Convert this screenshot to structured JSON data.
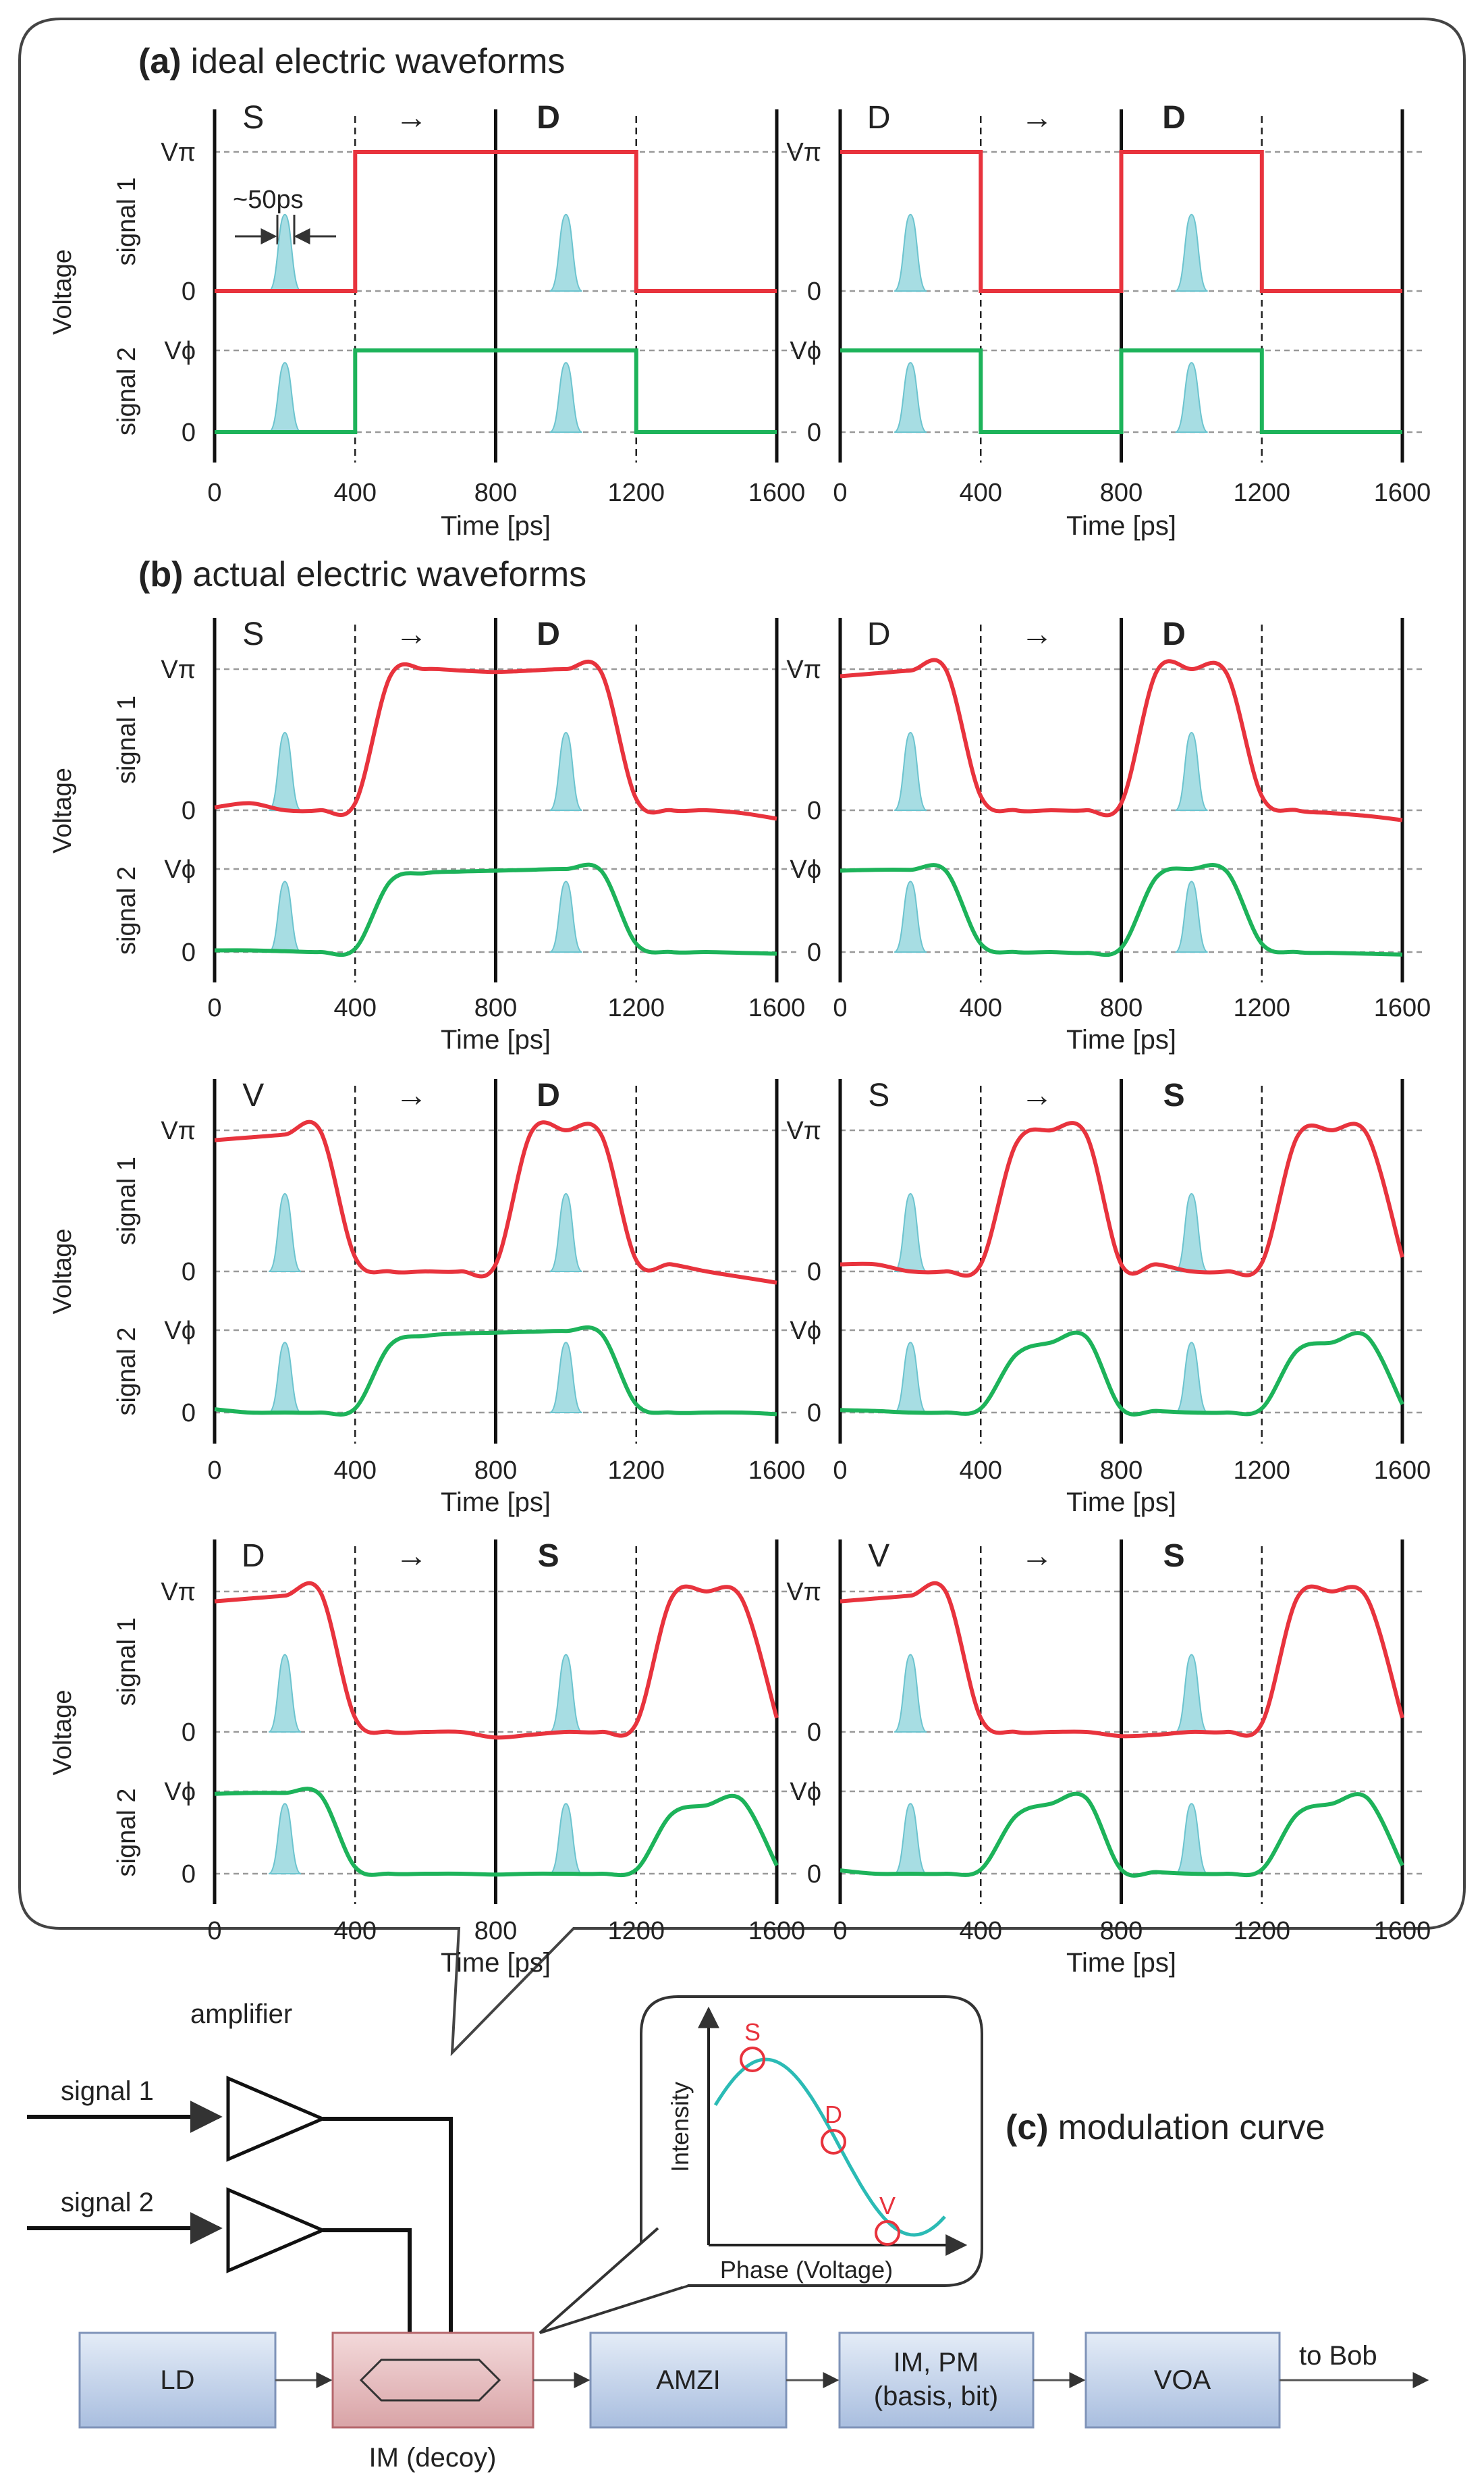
{
  "panel_a": {
    "label": "(a)",
    "title": "ideal electric waveforms",
    "pulse_width_label": "~50ps"
  },
  "panel_b": {
    "label": "(b)",
    "title": "actual electric waveforms"
  },
  "panel_c": {
    "label": "(c)",
    "title": "modulation curve",
    "x_axis": "Phase (Voltage)",
    "y_axis": "Intensity",
    "points": [
      "S",
      "D",
      "V"
    ]
  },
  "axes": {
    "x_ticks": [
      "0",
      "400",
      "800",
      "1200",
      "1600"
    ],
    "x_label": "Time [ps]",
    "y_label": "Voltage",
    "signal1": "signal 1",
    "signal2": "signal 2",
    "v_pi": "Vπ",
    "v_phi": "Vϕ",
    "zero": "0"
  },
  "plots": [
    {
      "from": "S",
      "arrow": "→",
      "to": "D"
    },
    {
      "from": "D",
      "arrow": "→",
      "to": "D"
    },
    {
      "from": "S",
      "arrow": "→",
      "to": "D"
    },
    {
      "from": "D",
      "arrow": "→",
      "to": "D"
    },
    {
      "from": "V",
      "arrow": "→",
      "to": "D"
    },
    {
      "from": "S",
      "arrow": "→",
      "to": "S"
    },
    {
      "from": "D",
      "arrow": "→",
      "to": "S"
    },
    {
      "from": "V",
      "arrow": "→",
      "to": "S"
    }
  ],
  "chart_data": {
    "type": "line",
    "x_unit": "ps",
    "xlim": [
      0,
      1600
    ],
    "grid": "dashed horizontal at 0, Vπ and Vϕ; dashed vertical at 400 and 1200; solid vertical at 0, 800, 1600",
    "optical_pulse_centers_ps": [
      200,
      1000
    ],
    "series_colors": {
      "signal 1": "#e8333d",
      "signal 2": "#1db35a",
      "pulse": "#6cc4cf"
    },
    "symbol_levels": {
      "S": {
        "signal1": 0,
        "signal2": 0
      },
      "D": {
        "signal1": 1,
        "signal2": 1
      },
      "V": {
        "signal1": 1,
        "signal2": 0
      }
    },
    "plots": [
      {
        "panel": "a-left",
        "signal1": [
          [
            0,
            0
          ],
          [
            400,
            0
          ],
          [
            400,
            1
          ],
          [
            1200,
            1
          ],
          [
            1200,
            0
          ],
          [
            1600,
            0
          ]
        ],
        "signal2": [
          [
            0,
            0
          ],
          [
            400,
            0
          ],
          [
            400,
            1
          ],
          [
            1200,
            1
          ],
          [
            1200,
            0
          ],
          [
            1600,
            0
          ]
        ]
      },
      {
        "panel": "a-right",
        "signal1": [
          [
            0,
            1
          ],
          [
            400,
            1
          ],
          [
            400,
            0
          ],
          [
            800,
            0
          ],
          [
            800,
            1
          ],
          [
            1200,
            1
          ],
          [
            1200,
            0
          ],
          [
            1600,
            0
          ]
        ],
        "signal2": [
          [
            0,
            1
          ],
          [
            400,
            1
          ],
          [
            400,
            0
          ],
          [
            800,
            0
          ],
          [
            800,
            1
          ],
          [
            1200,
            1
          ],
          [
            1200,
            0
          ],
          [
            1600,
            0
          ]
        ]
      },
      {
        "panel": "b-1-left",
        "signal1": [
          0,
          0,
          1,
          1,
          0,
          0
        ],
        "signal2": [
          0,
          0,
          1,
          1,
          0,
          0
        ]
      },
      {
        "panel": "b-1-right",
        "signal1": [
          1,
          0,
          1,
          0
        ],
        "signal2": [
          1,
          0,
          1,
          0
        ]
      },
      {
        "panel": "b-2-left",
        "signal1": [
          1,
          0,
          1,
          0
        ],
        "signal2": [
          0,
          1,
          0
        ]
      },
      {
        "panel": "b-2-right",
        "signal1": [
          0,
          1,
          0,
          1
        ],
        "signal2": [
          0,
          1,
          0,
          1
        ]
      },
      {
        "panel": "b-3-left",
        "signal1": [
          1,
          0,
          1
        ],
        "signal2": [
          1,
          0,
          1
        ]
      },
      {
        "panel": "b-3-right",
        "signal1": [
          1,
          0,
          1
        ],
        "signal2": [
          0,
          1,
          0,
          1
        ]
      }
    ]
  },
  "schematic": {
    "amplifier": "amplifier",
    "signal1": "signal 1",
    "signal2": "signal 2",
    "blocks": [
      "LD",
      "IM (decoy)",
      "AMZI",
      "IM, PM",
      "(basis, bit)",
      "VOA"
    ],
    "to_bob": "to Bob"
  }
}
